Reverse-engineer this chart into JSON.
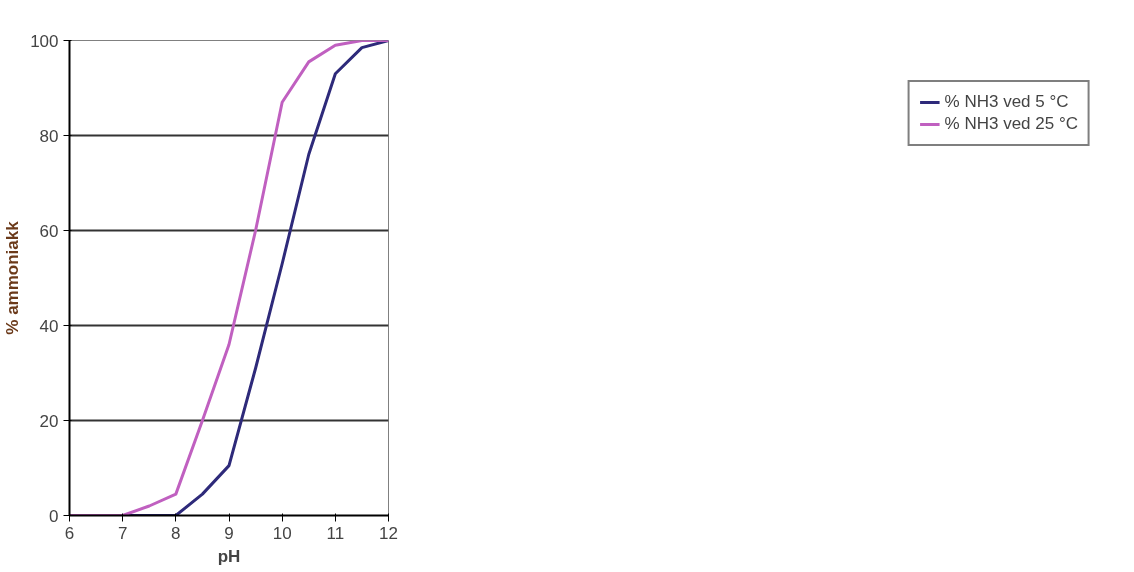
{
  "chart_data": {
    "type": "line",
    "xlabel": "pH",
    "ylabel": "% ammoniakk",
    "x": [
      6,
      6.5,
      7,
      7.5,
      8,
      8.5,
      9,
      9.5,
      10,
      10.5,
      11,
      11.5,
      12
    ],
    "series": [
      {
        "name": "% NH3 ved 5 °C",
        "color": "#2e2a7a",
        "values": [
          0,
          0,
          0,
          0,
          0,
          4.5,
          10.5,
          31,
          53,
          76,
          93,
          98.5,
          100
        ]
      },
      {
        "name": "% NH3 ved 25 °C",
        "color": "#c060c0",
        "values": [
          0,
          0,
          0,
          2,
          4.5,
          20,
          36,
          60,
          87,
          95.5,
          99,
          100,
          100
        ]
      }
    ],
    "xlim": [
      6,
      12
    ],
    "xticks": [
      6,
      7,
      8,
      9,
      10,
      11,
      12
    ],
    "ylim": [
      0,
      100
    ],
    "yticks": [
      0,
      20,
      40,
      60,
      80,
      100
    ],
    "grid": "y",
    "legend": "right",
    "marker": "none",
    "line_style": "solid"
  }
}
